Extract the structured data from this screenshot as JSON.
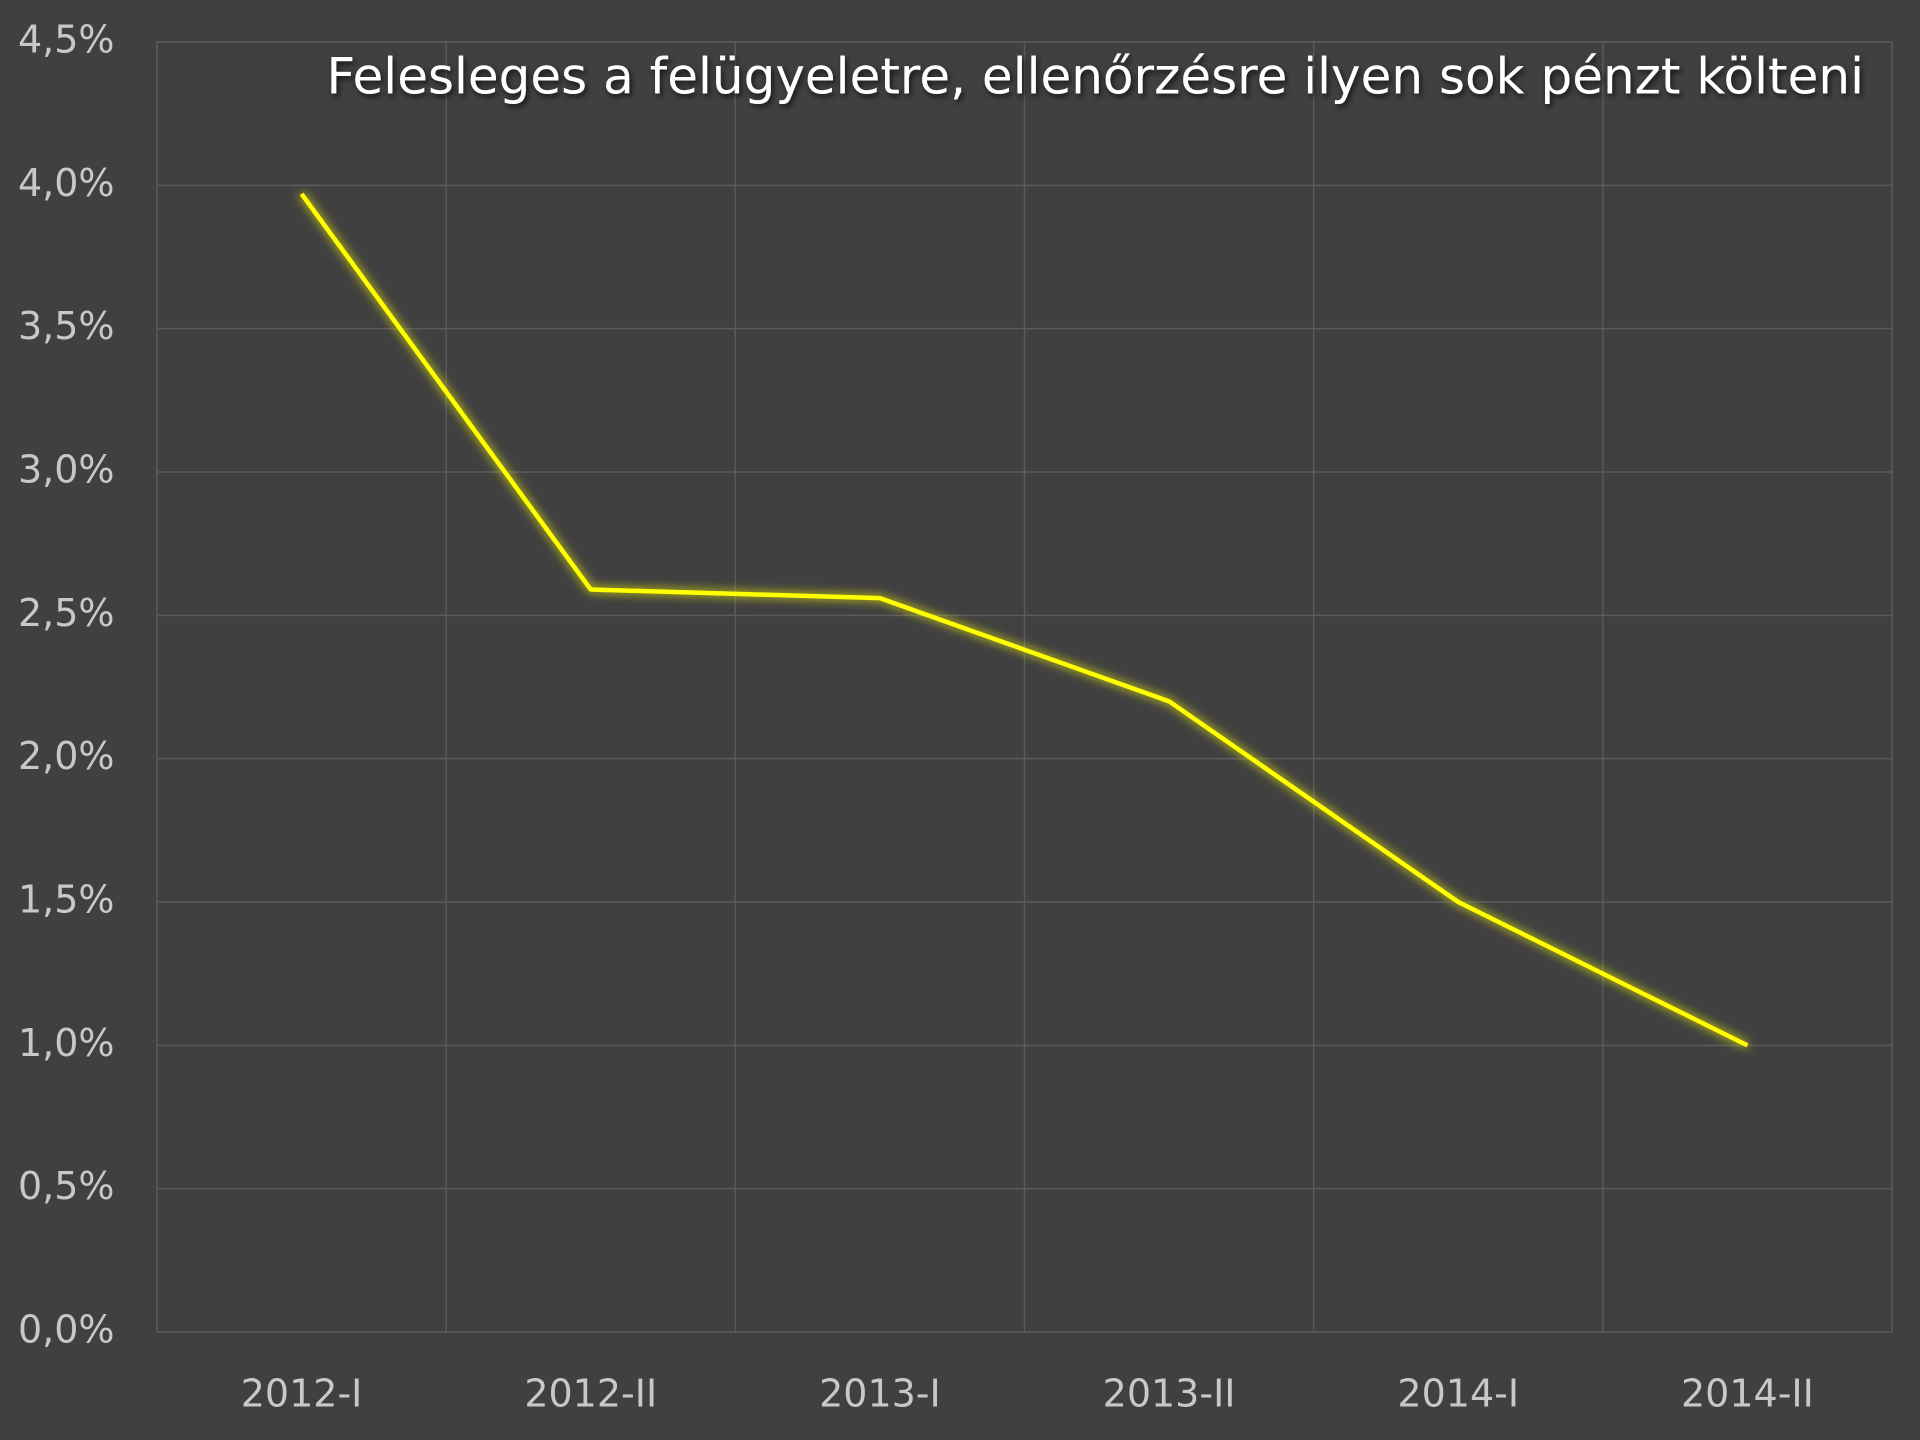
{
  "chart_data": {
    "type": "line",
    "title": "Felesleges a felügyeletre, ellenőrzésre ilyen sok pénzt költeni",
    "categories": [
      "2012-I",
      "2012-II",
      "2013-I",
      "2013-II",
      "2014-I",
      "2014-II"
    ],
    "series": [
      {
        "color": "#ffff00",
        "values": [
          3.97,
          2.59,
          2.56,
          2.2,
          1.5,
          1.0
        ]
      }
    ],
    "ylim": [
      0,
      4.5
    ],
    "yticks": [
      {
        "value": 0,
        "label": "0,0%"
      },
      {
        "value": 0.5,
        "label": "0,5%"
      },
      {
        "value": 1.0,
        "label": "1,0%"
      },
      {
        "value": 1.5,
        "label": "1,5%"
      },
      {
        "value": 2.0,
        "label": "2,0%"
      },
      {
        "value": 2.5,
        "label": "2,5%"
      },
      {
        "value": 3.0,
        "label": "3,0%"
      },
      {
        "value": 3.5,
        "label": "3,5%"
      },
      {
        "value": 4.0,
        "label": "4,0%"
      },
      {
        "value": 4.5,
        "label": "4,5%"
      }
    ],
    "grid": true
  }
}
